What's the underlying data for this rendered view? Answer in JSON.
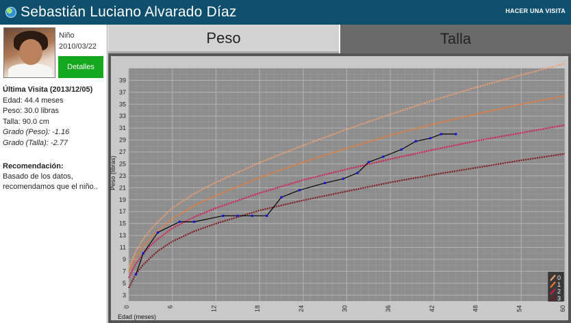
{
  "header": {
    "patient_name": "Sebastián Luciano Alvarado Díaz",
    "new_visit": "HACER UNA VISITA"
  },
  "sidebar": {
    "gender": "Niño",
    "dob": "2010/03/22",
    "details_button": "Detalles",
    "last_visit_title": "Última Visita (2013/12/05)",
    "age": "Edad: 44.4 meses",
    "weight": "Peso: 30.0 libras",
    "height": "Talla: 90.0 cm",
    "grade_weight": "Grado (Peso): -1.16",
    "grade_height": "Grado (Talla): -2.77",
    "recommendation_title": "Recomendación:",
    "recommendation_text": "Basado de los datos, recomendamos que el niño.."
  },
  "tabs": {
    "peso": "Peso",
    "talla": "Talla"
  },
  "chart_data": {
    "type": "line",
    "xlabel": "Edad (meses)",
    "ylabel": "Peso (libras)",
    "xlim": [
      0,
      60
    ],
    "ylim": [
      2,
      41
    ],
    "x_ticks": [
      0,
      6,
      12,
      18,
      24,
      30,
      36,
      42,
      48,
      54,
      60
    ],
    "y_ticks": [
      3,
      5,
      7,
      9,
      11,
      13,
      15,
      17,
      19,
      21,
      23,
      25,
      27,
      29,
      31,
      33,
      35,
      37,
      39
    ],
    "grid": true,
    "legend": {
      "position": "bottom-right",
      "labels": [
        "0",
        "1",
        "2",
        "3"
      ]
    },
    "series": [
      {
        "name": "0",
        "color": "#f0a070",
        "x": [
          0,
          1,
          2,
          3,
          4,
          6,
          9,
          12,
          18,
          24,
          30,
          36,
          42,
          48,
          54,
          60
        ],
        "y": [
          7.5,
          10.4,
          12.4,
          14.0,
          15.3,
          17.6,
          20.0,
          21.9,
          25.2,
          28.1,
          30.8,
          33.3,
          35.7,
          37.9,
          39.9,
          41.8
        ]
      },
      {
        "name": "1",
        "color": "#f07a30",
        "x": [
          0,
          1,
          2,
          3,
          4,
          6,
          9,
          12,
          18,
          24,
          30,
          36,
          42,
          48,
          54,
          60
        ],
        "y": [
          6.9,
          9.4,
          11.2,
          12.6,
          13.8,
          15.8,
          18.0,
          19.7,
          22.7,
          25.3,
          27.6,
          29.8,
          31.7,
          33.4,
          35.0,
          36.4
        ]
      },
      {
        "name": "2",
        "color": "#d81a50",
        "x": [
          0,
          1,
          2,
          3,
          4,
          6,
          9,
          12,
          18,
          24,
          30,
          36,
          42,
          48,
          54,
          60
        ],
        "y": [
          5.9,
          8.3,
          9.9,
          11.3,
          12.4,
          14.2,
          16.1,
          17.6,
          20.1,
          22.3,
          24.1,
          25.8,
          27.4,
          28.9,
          30.2,
          31.5
        ]
      },
      {
        "name": "3",
        "color": "#801418",
        "x": [
          0,
          1,
          2,
          3,
          4,
          6,
          9,
          12,
          18,
          24,
          30,
          36,
          42,
          48,
          54,
          60
        ],
        "y": [
          4.2,
          6.6,
          8.1,
          9.3,
          10.4,
          12.0,
          13.7,
          15.0,
          17.2,
          18.9,
          20.4,
          21.9,
          23.2,
          24.4,
          25.6,
          26.7
        ]
      },
      {
        "name": "patient",
        "color": "#000000",
        "x": [
          1,
          2,
          4,
          7,
          9,
          13,
          15,
          17,
          19,
          21,
          23.5,
          27,
          29.5,
          31.5,
          33,
          35,
          37.5,
          39.5,
          41.5,
          43,
          45
        ],
        "y": [
          6.5,
          10.0,
          13.5,
          15.3,
          15.3,
          16.3,
          16.3,
          16.3,
          16.3,
          19.4,
          20.6,
          21.8,
          22.5,
          23.5,
          25.3,
          26.2,
          27.4,
          28.8,
          29.3,
          30.0,
          30.0
        ]
      }
    ]
  }
}
